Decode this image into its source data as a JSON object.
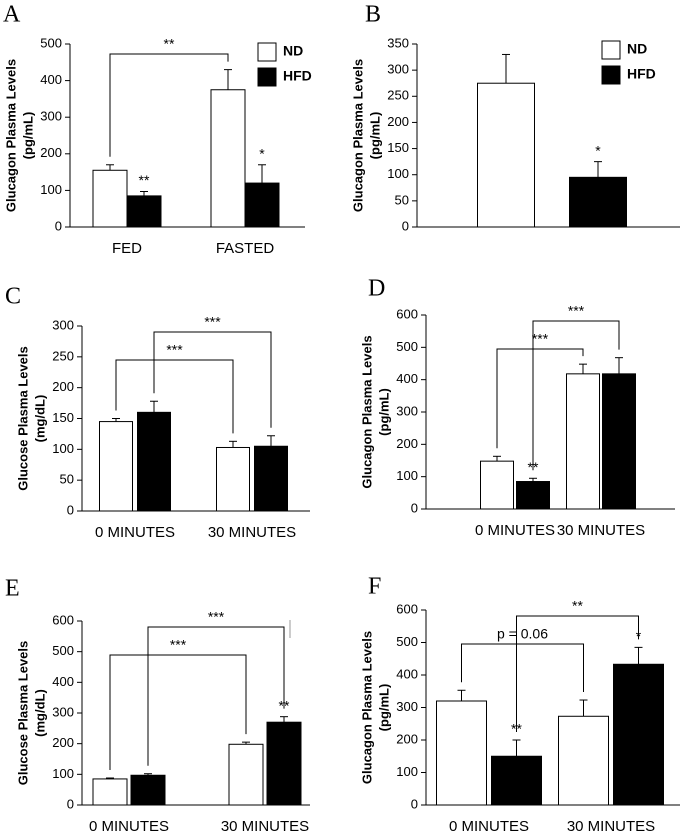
{
  "chart_data": [
    {
      "type": "bar",
      "panel": "A",
      "ylabel": [
        "Glucagon Plasma Levels",
        "(pg/mL)"
      ],
      "categories": [
        "FED",
        "FASTED"
      ],
      "ylim": [
        0,
        500
      ],
      "yticks": [
        0,
        100,
        200,
        300,
        400,
        500
      ],
      "legend": "upper right",
      "series": [
        {
          "name": "ND",
          "color": "#ffffff",
          "values": [
            155,
            375
          ],
          "errors": [
            15,
            55
          ],
          "significance": [
            null,
            null
          ],
          "bracket": "**"
        },
        {
          "name": "HFD",
          "color": "#000000",
          "values": [
            85,
            120
          ],
          "errors": [
            12,
            50
          ],
          "significance": [
            "**",
            "*"
          ]
        }
      ]
    },
    {
      "type": "bar",
      "panel": "B",
      "ylabel": [
        "Glucagon Plasma Levels",
        "(pg/mL)"
      ],
      "categories": [
        null
      ],
      "ylim": [
        0,
        350
      ],
      "yticks": [
        0,
        50,
        100,
        150,
        200,
        250,
        300,
        350
      ],
      "legend": "upper right",
      "series": [
        {
          "name": "ND",
          "color": "#ffffff",
          "values": [
            275
          ],
          "errors": [
            55
          ],
          "significance": [
            null
          ]
        },
        {
          "name": "HFD",
          "color": "#000000",
          "values": [
            95
          ],
          "errors": [
            30
          ],
          "significance": [
            "*"
          ]
        }
      ]
    },
    {
      "type": "bar",
      "panel": "C",
      "ylabel": [
        "Glucose Plasma Levels",
        "(mg/dL)"
      ],
      "categories": [
        "0 MINUTES",
        "30 MINUTES"
      ],
      "ylim": [
        0,
        300
      ],
      "yticks": [
        0,
        50,
        100,
        150,
        200,
        250,
        300
      ],
      "series": [
        {
          "name": "ND",
          "color": "#ffffff",
          "values": [
            145,
            103
          ],
          "errors": [
            5,
            10
          ],
          "significance": [
            null,
            null
          ],
          "bracket": "***"
        },
        {
          "name": "HFD",
          "color": "#000000",
          "values": [
            160,
            105
          ],
          "errors": [
            18,
            17
          ],
          "significance": [
            null,
            null
          ],
          "bracket": "***"
        }
      ]
    },
    {
      "type": "bar",
      "panel": "D",
      "ylabel": [
        "Glucagon Plasma Levels",
        "(pg/mL)"
      ],
      "categories": [
        "0 MINUTES",
        "30 MINUTES"
      ],
      "ylim": [
        0,
        600
      ],
      "yticks": [
        0,
        100,
        200,
        300,
        400,
        500,
        600
      ],
      "series": [
        {
          "name": "ND",
          "color": "#ffffff",
          "values": [
            148,
            418
          ],
          "errors": [
            15,
            30
          ],
          "significance": [
            null,
            null
          ],
          "bracket": "***"
        },
        {
          "name": "HFD",
          "color": "#000000",
          "values": [
            85,
            418
          ],
          "errors": [
            10,
            50
          ],
          "significance": [
            "**",
            null
          ],
          "bracket": "***"
        }
      ]
    },
    {
      "type": "bar",
      "panel": "E",
      "ylabel": [
        "Glucose Plasma Levels",
        "(mg/dL)"
      ],
      "categories": [
        "0 MINUTES",
        "30 MINUTES"
      ],
      "ylim": [
        0,
        600
      ],
      "yticks": [
        0,
        100,
        200,
        300,
        400,
        500,
        600
      ],
      "series": [
        {
          "name": "ND",
          "color": "#ffffff",
          "values": [
            85,
            198
          ],
          "errors": [
            3,
            7
          ],
          "significance": [
            null,
            null
          ],
          "bracket": "***"
        },
        {
          "name": "HFD",
          "color": "#000000",
          "values": [
            97,
            270
          ],
          "errors": [
            5,
            18
          ],
          "significance": [
            null,
            "**"
          ],
          "bracket": "***"
        }
      ]
    },
    {
      "type": "bar",
      "panel": "F",
      "ylabel": [
        "Glucagon Plasma Levels",
        "(pg/mL)"
      ],
      "categories": [
        "0 MINUTES",
        "30 MINUTES"
      ],
      "ylim": [
        0,
        600
      ],
      "yticks": [
        0,
        100,
        200,
        300,
        400,
        500,
        600
      ],
      "series": [
        {
          "name": "ND",
          "color": "#ffffff",
          "values": [
            320,
            273
          ],
          "errors": [
            33,
            50
          ],
          "significance": [
            null,
            null
          ],
          "bracket": "p = 0.06"
        },
        {
          "name": "HFD",
          "color": "#000000",
          "values": [
            150,
            433
          ],
          "errors": [
            50,
            52
          ],
          "significance": [
            "**",
            "*"
          ],
          "bracket": "**"
        }
      ]
    }
  ]
}
